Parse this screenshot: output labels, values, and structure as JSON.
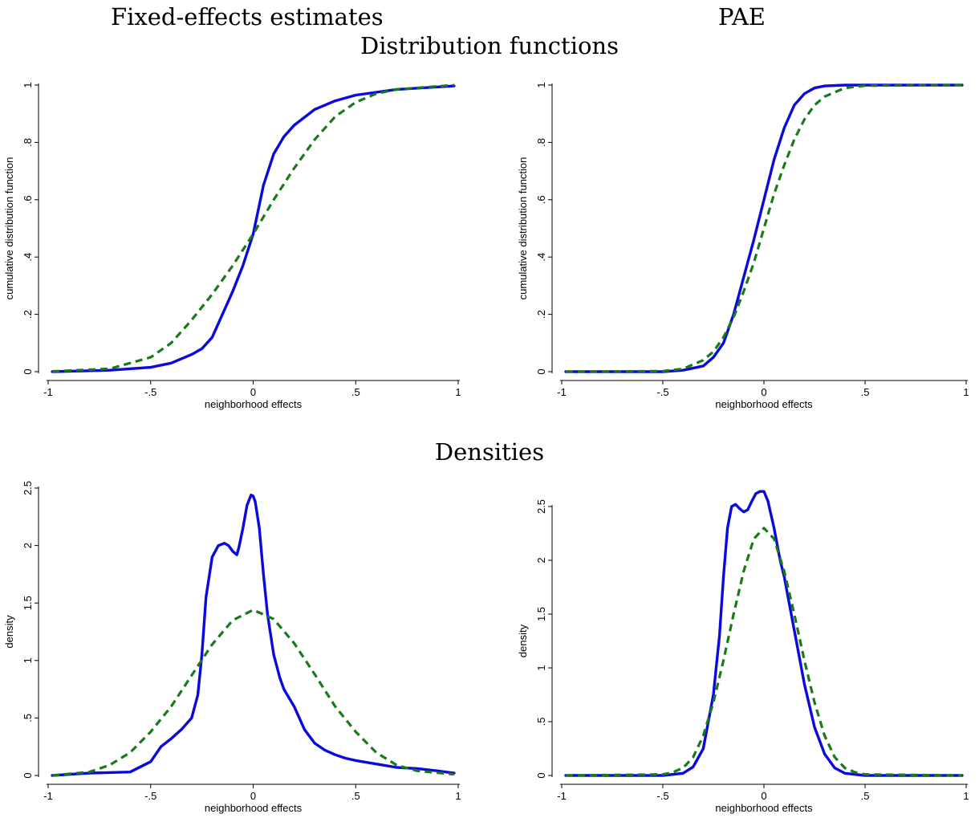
{
  "headers": {
    "left_column": "Fixed-effects estimates",
    "right_column": "PAE",
    "row1": "Distribution functions",
    "row2": "Densities"
  },
  "colors": {
    "solid_series": "#0a0adc",
    "dashed_series": "#1a7a1a",
    "axis": "#000000"
  },
  "chart_data": [
    {
      "id": "fe-cdf",
      "type": "line",
      "xlabel": "neighborhood effects",
      "ylabel": "cumulative distribution function",
      "xlim": [
        -1,
        1
      ],
      "ylim": [
        0,
        1
      ],
      "xticks": [
        {
          "v": -1,
          "label": "-1"
        },
        {
          "v": -0.5,
          "label": "-.5"
        },
        {
          "v": 0,
          "label": "0"
        },
        {
          "v": 0.5,
          "label": ".5"
        },
        {
          "v": 1,
          "label": "1"
        }
      ],
      "yticks": [
        {
          "v": 0,
          "label": "0"
        },
        {
          "v": 0.2,
          "label": ".2"
        },
        {
          "v": 0.4,
          "label": ".4"
        },
        {
          "v": 0.6,
          "label": ".6"
        },
        {
          "v": 0.8,
          "label": ".8"
        },
        {
          "v": 1,
          "label": "1"
        }
      ],
      "grid": false,
      "series": [
        {
          "style": "solid",
          "x": [
            -0.98,
            -0.7,
            -0.5,
            -0.4,
            -0.3,
            -0.25,
            -0.2,
            -0.15,
            -0.1,
            -0.05,
            0,
            0.05,
            0.1,
            0.15,
            0.2,
            0.3,
            0.4,
            0.5,
            0.7,
            0.98
          ],
          "y": [
            0.0,
            0.005,
            0.015,
            0.03,
            0.06,
            0.08,
            0.12,
            0.2,
            0.28,
            0.37,
            0.48,
            0.65,
            0.76,
            0.82,
            0.86,
            0.915,
            0.945,
            0.965,
            0.985,
            0.997
          ]
        },
        {
          "style": "dashed",
          "x": [
            -0.98,
            -0.7,
            -0.5,
            -0.4,
            -0.3,
            -0.2,
            -0.1,
            0,
            0.1,
            0.2,
            0.3,
            0.4,
            0.5,
            0.6,
            0.7,
            0.98
          ],
          "y": [
            0.001,
            0.01,
            0.05,
            0.1,
            0.18,
            0.27,
            0.37,
            0.48,
            0.6,
            0.71,
            0.81,
            0.89,
            0.94,
            0.97,
            0.985,
            1.0
          ]
        }
      ]
    },
    {
      "id": "pae-cdf",
      "type": "line",
      "xlabel": "neighborhood effects",
      "ylabel": "cumulative distribution function",
      "xlim": [
        -1,
        1
      ],
      "ylim": [
        0,
        1
      ],
      "xticks": [
        {
          "v": -1,
          "label": "-1"
        },
        {
          "v": -0.5,
          "label": "-.5"
        },
        {
          "v": 0,
          "label": "0"
        },
        {
          "v": 0.5,
          "label": ".5"
        },
        {
          "v": 1,
          "label": "1"
        }
      ],
      "yticks": [
        {
          "v": 0,
          "label": "0"
        },
        {
          "v": 0.2,
          "label": ".2"
        },
        {
          "v": 0.4,
          "label": ".4"
        },
        {
          "v": 0.6,
          "label": ".6"
        },
        {
          "v": 0.8,
          "label": ".8"
        },
        {
          "v": 1,
          "label": "1"
        }
      ],
      "grid": false,
      "series": [
        {
          "style": "solid",
          "x": [
            -0.98,
            -0.5,
            -0.4,
            -0.3,
            -0.25,
            -0.2,
            -0.15,
            -0.1,
            -0.05,
            0,
            0.05,
            0.1,
            0.15,
            0.2,
            0.25,
            0.3,
            0.4,
            0.98
          ],
          "y": [
            0.0,
            0.0,
            0.005,
            0.02,
            0.05,
            0.1,
            0.2,
            0.33,
            0.46,
            0.6,
            0.74,
            0.85,
            0.93,
            0.97,
            0.99,
            0.997,
            1.0,
            1.0
          ]
        },
        {
          "style": "dashed",
          "x": [
            -0.98,
            -0.5,
            -0.4,
            -0.3,
            -0.25,
            -0.2,
            -0.15,
            -0.1,
            -0.05,
            0,
            0.05,
            0.1,
            0.15,
            0.2,
            0.25,
            0.3,
            0.4,
            0.5,
            0.98
          ],
          "y": [
            0.0,
            0.002,
            0.01,
            0.04,
            0.07,
            0.12,
            0.19,
            0.28,
            0.38,
            0.5,
            0.62,
            0.72,
            0.81,
            0.88,
            0.93,
            0.96,
            0.99,
            0.998,
            1.0
          ]
        }
      ]
    },
    {
      "id": "fe-density",
      "type": "line",
      "xlabel": "neighborhood effects",
      "ylabel": "density",
      "xlim": [
        -1,
        1
      ],
      "ylim": [
        0,
        2.5
      ],
      "xticks": [
        {
          "v": -1,
          "label": "-1"
        },
        {
          "v": -0.5,
          "label": "-.5"
        },
        {
          "v": 0,
          "label": "0"
        },
        {
          "v": 0.5,
          "label": ".5"
        },
        {
          "v": 1,
          "label": "1"
        }
      ],
      "yticks": [
        {
          "v": 0,
          "label": "0"
        },
        {
          "v": 0.5,
          "label": ".5"
        },
        {
          "v": 1,
          "label": "1"
        },
        {
          "v": 1.5,
          "label": "1.5"
        },
        {
          "v": 2,
          "label": "2"
        },
        {
          "v": 2.5,
          "label": "2.5"
        }
      ],
      "grid": false,
      "series": [
        {
          "style": "solid",
          "x": [
            -0.98,
            -0.8,
            -0.6,
            -0.5,
            -0.45,
            -0.4,
            -0.35,
            -0.3,
            -0.27,
            -0.25,
            -0.23,
            -0.2,
            -0.17,
            -0.14,
            -0.12,
            -0.1,
            -0.08,
            -0.07,
            -0.05,
            -0.03,
            -0.01,
            0,
            0.01,
            0.03,
            0.05,
            0.07,
            0.1,
            0.13,
            0.15,
            0.2,
            0.25,
            0.3,
            0.35,
            0.4,
            0.45,
            0.5,
            0.6,
            0.7,
            0.8,
            0.9,
            0.98
          ],
          "y": [
            0.0,
            0.02,
            0.03,
            0.12,
            0.25,
            0.32,
            0.4,
            0.5,
            0.7,
            1.05,
            1.55,
            1.9,
            2.0,
            2.02,
            2.0,
            1.95,
            1.92,
            1.98,
            2.15,
            2.35,
            2.44,
            2.43,
            2.38,
            2.15,
            1.75,
            1.4,
            1.05,
            0.85,
            0.75,
            0.6,
            0.4,
            0.28,
            0.22,
            0.18,
            0.15,
            0.13,
            0.1,
            0.07,
            0.06,
            0.04,
            0.02
          ]
        },
        {
          "style": "dashed",
          "x": [
            -0.98,
            -0.8,
            -0.7,
            -0.6,
            -0.5,
            -0.4,
            -0.3,
            -0.2,
            -0.1,
            0,
            0.1,
            0.2,
            0.3,
            0.4,
            0.5,
            0.6,
            0.7,
            0.8,
            0.98
          ],
          "y": [
            0.0,
            0.03,
            0.09,
            0.2,
            0.38,
            0.6,
            0.87,
            1.14,
            1.35,
            1.44,
            1.36,
            1.15,
            0.88,
            0.6,
            0.38,
            0.2,
            0.09,
            0.04,
            0.01
          ]
        }
      ]
    },
    {
      "id": "pae-density",
      "type": "line",
      "xlabel": "neighborhood effects",
      "ylabel": "density",
      "xlim": [
        -1,
        1
      ],
      "ylim": [
        0,
        2.5
      ],
      "xticks": [
        {
          "v": -1,
          "label": "-1"
        },
        {
          "v": -0.5,
          "label": "-.5"
        },
        {
          "v": 0,
          "label": "0"
        },
        {
          "v": 0.5,
          "label": ".5"
        },
        {
          "v": 1,
          "label": "1"
        }
      ],
      "yticks": [
        {
          "v": 0,
          "label": "0"
        },
        {
          "v": 0.5,
          "label": ".5"
        },
        {
          "v": 1,
          "label": "1"
        },
        {
          "v": 1.5,
          "label": "1.5"
        },
        {
          "v": 2,
          "label": "2"
        },
        {
          "v": 2.5,
          "label": "2.5"
        }
      ],
      "grid": false,
      "series": [
        {
          "style": "solid",
          "x": [
            -0.98,
            -0.5,
            -0.4,
            -0.35,
            -0.3,
            -0.25,
            -0.22,
            -0.2,
            -0.18,
            -0.16,
            -0.14,
            -0.12,
            -0.1,
            -0.08,
            -0.06,
            -0.04,
            -0.02,
            0,
            0.02,
            0.05,
            0.08,
            0.1,
            0.15,
            0.2,
            0.25,
            0.3,
            0.35,
            0.4,
            0.5,
            0.98
          ],
          "y": [
            0.0,
            0.0,
            0.02,
            0.08,
            0.25,
            0.75,
            1.3,
            1.85,
            2.3,
            2.5,
            2.52,
            2.48,
            2.45,
            2.47,
            2.55,
            2.62,
            2.64,
            2.64,
            2.55,
            2.3,
            2.0,
            1.85,
            1.35,
            0.85,
            0.45,
            0.2,
            0.07,
            0.02,
            0.0,
            0.0
          ]
        },
        {
          "style": "dashed",
          "x": [
            -0.98,
            -0.5,
            -0.45,
            -0.4,
            -0.35,
            -0.3,
            -0.25,
            -0.2,
            -0.15,
            -0.1,
            -0.05,
            0,
            0.05,
            0.1,
            0.15,
            0.2,
            0.25,
            0.3,
            0.35,
            0.4,
            0.45,
            0.5,
            0.98
          ],
          "y": [
            0.0,
            0.01,
            0.03,
            0.07,
            0.17,
            0.37,
            0.68,
            1.07,
            1.5,
            1.9,
            2.2,
            2.3,
            2.2,
            1.9,
            1.5,
            1.07,
            0.68,
            0.37,
            0.17,
            0.07,
            0.03,
            0.01,
            0.0
          ]
        }
      ]
    }
  ]
}
